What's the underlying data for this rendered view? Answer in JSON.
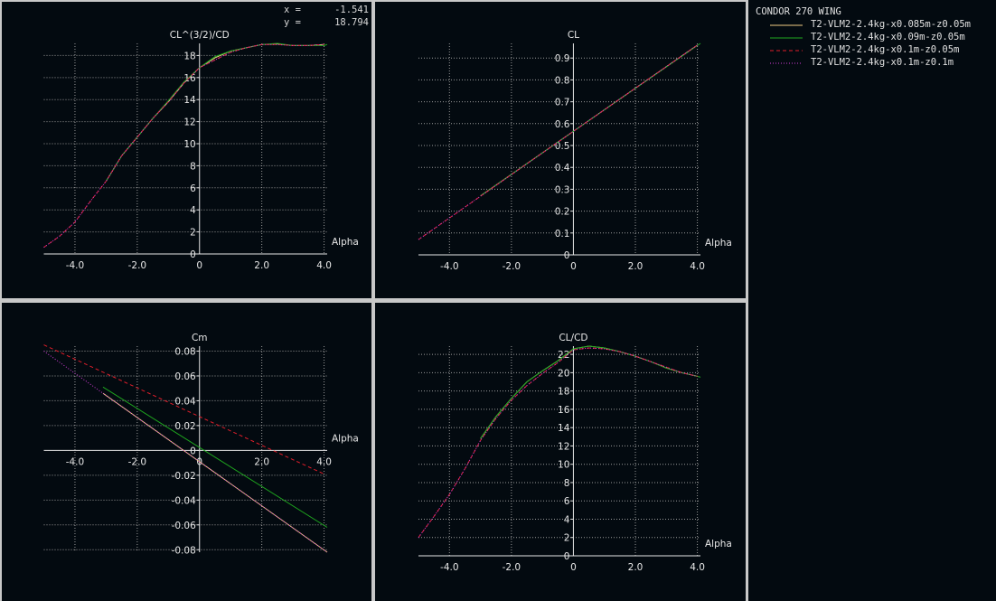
{
  "readout": {
    "x_label": "x =",
    "x_value": "-1.541",
    "y_label": "y =",
    "y_value": "18.794"
  },
  "legend": {
    "title": "CONDOR 270 WING",
    "entries": [
      {
        "name": "T2-VLM2-2.4kg-x0.085m-z0.05m",
        "color": "#f2cc84",
        "style": "solid"
      },
      {
        "name": "T2-VLM2-2.4kg-x0.09m-z0.05m",
        "color": "#1fa81f",
        "style": "solid"
      },
      {
        "name": "T2-VLM2-2.4kg-x0.1m-z0.05m",
        "color": "#e01e2a",
        "style": "dashed"
      },
      {
        "name": "T2-VLM2-2.4kg-x0.1m-z0.1m",
        "color": "#d23cd8",
        "style": "dotted"
      }
    ]
  },
  "chart_data": [
    {
      "type": "line",
      "ylabel": "CL^(3/2)/CD",
      "xlabel": "Alpha",
      "xlim": [
        -5.0,
        4.1
      ],
      "ylim": [
        0,
        19.1
      ],
      "grid": true,
      "xticks": [
        {
          "v": -4,
          "label": "-4.0"
        },
        {
          "v": -2,
          "label": "-2.0"
        },
        {
          "v": 0,
          "label": "0"
        },
        {
          "v": 2,
          "label": "2.0"
        },
        {
          "v": 4,
          "label": "4.0"
        }
      ],
      "yticks": [
        {
          "v": 0,
          "label": "0"
        },
        {
          "v": 2,
          "label": "2"
        },
        {
          "v": 4,
          "label": "4"
        },
        {
          "v": 6,
          "label": "6"
        },
        {
          "v": 8,
          "label": "8"
        },
        {
          "v": 10,
          "label": "10"
        },
        {
          "v": 12,
          "label": "12"
        },
        {
          "v": 14,
          "label": "14"
        },
        {
          "v": 16,
          "label": "16"
        },
        {
          "v": 18,
          "label": "18"
        }
      ],
      "series": [
        {
          "name": "T2-VLM2-2.4kg-x0.085m-z0.05m",
          "x": [
            -3,
            -2.5,
            -2,
            -1.5,
            -1,
            -0.5,
            0,
            0.5,
            1,
            1.5,
            2,
            2.5,
            3,
            3.5,
            4
          ],
          "y": [
            6.6,
            8.9,
            10.6,
            12.3,
            13.8,
            15.5,
            16.9,
            17.8,
            18.4,
            18.7,
            19.0,
            19.05,
            18.9,
            18.9,
            19.0
          ]
        },
        {
          "name": "T2-VLM2-2.4kg-x0.09m-z0.05m",
          "x": [
            -3,
            -2.5,
            -2,
            -1.5,
            -1,
            -0.5,
            0,
            0.5,
            1,
            1.5,
            2,
            2.5,
            3,
            3.5,
            4,
            4.1
          ],
          "y": [
            6.6,
            8.9,
            10.6,
            12.3,
            13.9,
            15.6,
            16.9,
            17.9,
            18.4,
            18.7,
            19.0,
            19.1,
            18.9,
            18.9,
            18.9,
            19.0
          ]
        },
        {
          "name": "T2-VLM2-2.4kg-x0.1m-z0.05m",
          "x": [
            -5,
            -4.5,
            -4,
            -3.5,
            -3,
            -2.5,
            -2,
            -1.5,
            -1,
            -0.5,
            0,
            0.5,
            1,
            1.5,
            2,
            2.5,
            3,
            3.5,
            4
          ],
          "y": [
            0.6,
            1.6,
            2.9,
            4.8,
            6.6,
            8.9,
            10.6,
            12.3,
            13.8,
            15.5,
            16.9,
            17.6,
            18.3,
            18.7,
            19.0,
            19.0,
            18.9,
            18.9,
            19.0
          ]
        },
        {
          "name": "T2-VLM2-2.4kg-x0.1m-z0.1m",
          "x": [
            -5,
            -4.5,
            -4,
            -3.5,
            -3,
            -2.5,
            -2,
            -1.5,
            -1,
            -0.5,
            0,
            0.5,
            1,
            1.5,
            2,
            2.5,
            3,
            3.5,
            4
          ],
          "y": [
            0.6,
            1.6,
            2.9,
            4.8,
            6.6,
            8.9,
            10.6,
            12.3,
            13.8,
            15.5,
            16.9,
            17.6,
            18.3,
            18.7,
            19.0,
            19.0,
            18.9,
            18.9,
            19.0
          ]
        }
      ]
    },
    {
      "type": "line",
      "ylabel": "CL",
      "xlabel": "Alpha",
      "xlim": [
        -5.0,
        4.1
      ],
      "ylim": [
        0,
        0.967
      ],
      "grid": true,
      "xticks": [
        {
          "v": -4,
          "label": "-4.0"
        },
        {
          "v": -2,
          "label": "-2.0"
        },
        {
          "v": 0,
          "label": "0"
        },
        {
          "v": 2,
          "label": "2.0"
        },
        {
          "v": 4,
          "label": "4.0"
        }
      ],
      "yticks": [
        {
          "v": 0,
          "label": "0"
        },
        {
          "v": 0.1,
          "label": "0.1"
        },
        {
          "v": 0.2,
          "label": "0.2"
        },
        {
          "v": 0.3,
          "label": "0.3"
        },
        {
          "v": 0.4,
          "label": "0.4"
        },
        {
          "v": 0.5,
          "label": "0.5"
        },
        {
          "v": 0.6,
          "label": "0.6"
        },
        {
          "v": 0.7,
          "label": "0.7"
        },
        {
          "v": 0.8,
          "label": "0.8"
        },
        {
          "v": 0.9,
          "label": "0.9"
        }
      ],
      "series": [
        {
          "name": "T2-VLM2-2.4kg-x0.085m-z0.05m",
          "x": [
            -3,
            0,
            4
          ],
          "y": [
            0.27,
            0.565,
            0.959
          ]
        },
        {
          "name": "T2-VLM2-2.4kg-x0.09m-z0.05m",
          "x": [
            -3,
            0,
            4.1
          ],
          "y": [
            0.27,
            0.565,
            0.967
          ]
        },
        {
          "name": "T2-VLM2-2.4kg-x0.1m-z0.05m",
          "x": [
            -5,
            0,
            4
          ],
          "y": [
            0.07,
            0.565,
            0.959
          ]
        },
        {
          "name": "T2-VLM2-2.4kg-x0.1m-z0.1m",
          "x": [
            -5,
            0,
            4
          ],
          "y": [
            0.07,
            0.565,
            0.959
          ]
        }
      ]
    },
    {
      "type": "line",
      "ylabel": "Cm",
      "xlabel": "Alpha",
      "xlim": [
        -5.0,
        4.1
      ],
      "ylim": [
        -0.082,
        0.084
      ],
      "grid": true,
      "xticks": [
        {
          "v": -4,
          "label": "-4.0"
        },
        {
          "v": -2,
          "label": "-2.0"
        },
        {
          "v": 0,
          "label": "0"
        },
        {
          "v": 2,
          "label": "2.0"
        },
        {
          "v": 4,
          "label": "4.0"
        }
      ],
      "yticks": [
        {
          "v": -0.08,
          "label": "-0.08"
        },
        {
          "v": -0.06,
          "label": "-0.06"
        },
        {
          "v": -0.04,
          "label": "-0.04"
        },
        {
          "v": -0.02,
          "label": "-0.02"
        },
        {
          "v": 0,
          "label": "0"
        },
        {
          "v": 0.02,
          "label": "0.02"
        },
        {
          "v": 0.04,
          "label": "0.04"
        },
        {
          "v": 0.06,
          "label": "0.06"
        },
        {
          "v": 0.08,
          "label": "0.08"
        }
      ],
      "series": [
        {
          "name": "T2-VLM2-2.4kg-x0.085m-z0.05m",
          "x": [
            -3.1,
            4.1
          ],
          "y": [
            0.046,
            -0.082
          ]
        },
        {
          "name": "T2-VLM2-2.4kg-x0.09m-z0.05m",
          "x": [
            -3.1,
            4.1
          ],
          "y": [
            0.051,
            -0.062
          ]
        },
        {
          "name": "T2-VLM2-2.4kg-x0.1m-z0.05m",
          "x": [
            -5.0,
            4.0
          ],
          "y": [
            0.085,
            -0.019
          ]
        },
        {
          "name": "T2-VLM2-2.4kg-x0.1m-z0.1m",
          "x": [
            -5.0,
            -3.1,
            4.1
          ],
          "y": [
            0.08,
            0.046,
            -0.082
          ]
        }
      ]
    },
    {
      "type": "line",
      "ylabel": "CL/CD",
      "xlabel": "Alpha",
      "xlim": [
        -5.0,
        4.1
      ],
      "ylim": [
        0,
        22.9
      ],
      "grid": true,
      "xticks": [
        {
          "v": -4,
          "label": "-4.0"
        },
        {
          "v": -2,
          "label": "-2.0"
        },
        {
          "v": 0,
          "label": "0"
        },
        {
          "v": 2,
          "label": "2.0"
        },
        {
          "v": 4,
          "label": "4.0"
        }
      ],
      "yticks": [
        {
          "v": 0,
          "label": "0"
        },
        {
          "v": 2,
          "label": "2"
        },
        {
          "v": 4,
          "label": "4"
        },
        {
          "v": 6,
          "label": "6"
        },
        {
          "v": 8,
          "label": "8"
        },
        {
          "v": 10,
          "label": "10"
        },
        {
          "v": 12,
          "label": "12"
        },
        {
          "v": 14,
          "label": "14"
        },
        {
          "v": 16,
          "label": "16"
        },
        {
          "v": 18,
          "label": "18"
        },
        {
          "v": 20,
          "label": "20"
        },
        {
          "v": 22,
          "label": "22"
        }
      ],
      "series": [
        {
          "name": "T2-VLM2-2.4kg-x0.085m-z0.05m",
          "x": [
            -3,
            -2.5,
            -2,
            -1.5,
            -1,
            -0.5,
            0,
            0.5,
            1,
            1.5,
            2,
            2.5,
            3,
            3.5,
            4
          ],
          "y": [
            12.8,
            15.2,
            17.2,
            19.0,
            20.2,
            21.3,
            22.6,
            22.9,
            22.7,
            22.3,
            21.8,
            21.2,
            20.5,
            20.0,
            19.6
          ]
        },
        {
          "name": "T2-VLM2-2.4kg-x0.09m-z0.05m",
          "x": [
            -3,
            -2.5,
            -2,
            -1.5,
            -1,
            -0.5,
            0,
            0.5,
            1,
            1.5,
            2,
            2.5,
            3,
            3.5,
            4,
            4.1
          ],
          "y": [
            12.8,
            15.2,
            17.2,
            19.0,
            20.2,
            21.3,
            22.6,
            22.9,
            22.7,
            22.3,
            21.8,
            21.2,
            20.5,
            20.0,
            19.6,
            19.5
          ]
        },
        {
          "name": "T2-VLM2-2.4kg-x0.1m-z0.05m",
          "x": [
            -5,
            -4.5,
            -4,
            -3.5,
            -3,
            -2.5,
            -2,
            -1.5,
            -1,
            -0.5,
            0,
            0.5,
            1,
            1.5,
            2,
            2.5,
            3,
            3.5,
            4
          ],
          "y": [
            2.0,
            4.3,
            6.7,
            9.5,
            12.6,
            15.0,
            17.0,
            18.6,
            19.9,
            21.1,
            22.5,
            22.7,
            22.6,
            22.3,
            21.8,
            21.2,
            20.6,
            20.0,
            19.6
          ]
        },
        {
          "name": "T2-VLM2-2.4kg-x0.1m-z0.1m",
          "x": [
            -5,
            -4.5,
            -4,
            -3.5,
            -3,
            -2.5,
            -2,
            -1.5,
            -1,
            -0.5,
            0,
            0.5,
            1,
            1.5,
            2,
            2.5,
            3,
            3.5,
            4
          ],
          "y": [
            2.0,
            4.3,
            6.7,
            9.5,
            12.6,
            15.0,
            17.0,
            18.6,
            19.9,
            21.1,
            22.5,
            22.7,
            22.6,
            22.3,
            21.8,
            21.2,
            20.6,
            20.0,
            19.6
          ]
        }
      ]
    }
  ]
}
